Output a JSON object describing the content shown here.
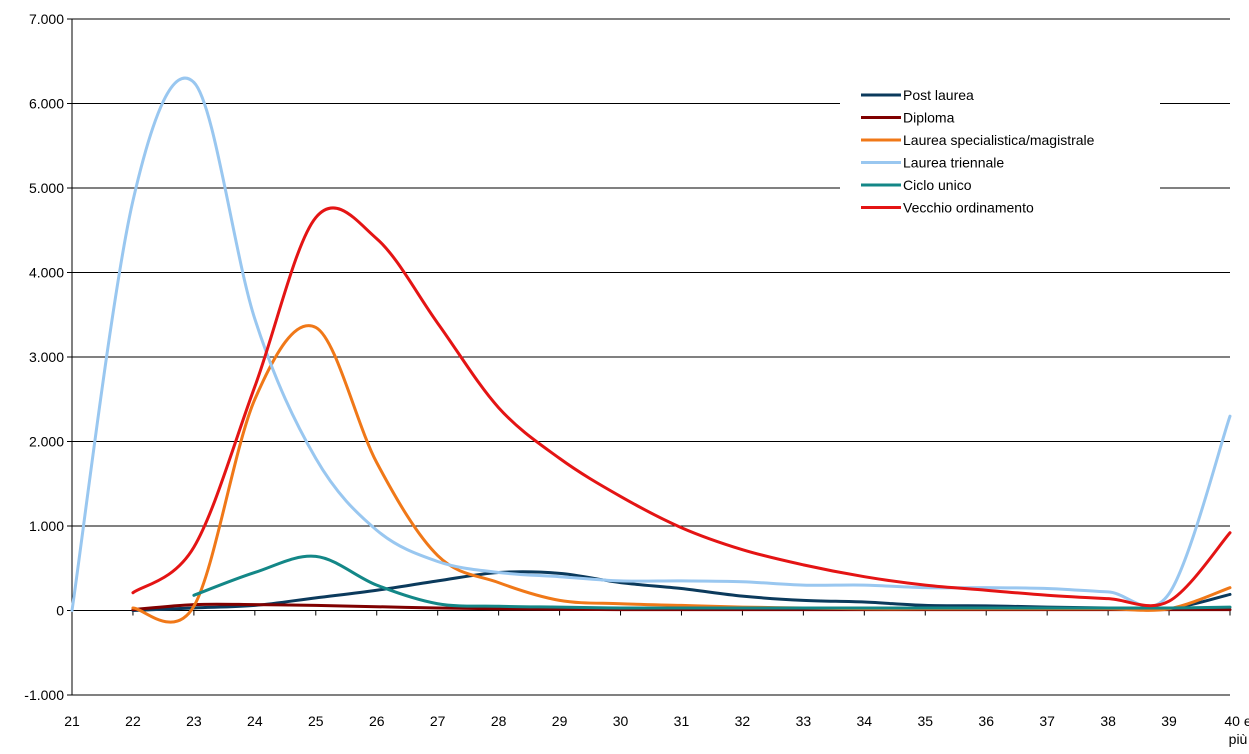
{
  "chart_data": {
    "type": "line",
    "title": "",
    "xlabel": "",
    "ylabel": "",
    "x": [
      "21",
      "22",
      "23",
      "24",
      "25",
      "26",
      "27",
      "28",
      "29",
      "30",
      "31",
      "32",
      "33",
      "34",
      "35",
      "36",
      "37",
      "38",
      "39",
      "40 e più"
    ],
    "x_tick_lines": [
      [
        "21"
      ],
      [
        "22"
      ],
      [
        "23"
      ],
      [
        "24"
      ],
      [
        "25"
      ],
      [
        "26"
      ],
      [
        "27"
      ],
      [
        "28"
      ],
      [
        "29"
      ],
      [
        "30"
      ],
      [
        "31"
      ],
      [
        "32"
      ],
      [
        "33"
      ],
      [
        "34"
      ],
      [
        "35"
      ],
      [
        "36"
      ],
      [
        "37"
      ],
      [
        "38"
      ],
      [
        "39"
      ],
      [
        "40 e",
        "più"
      ]
    ],
    "y_ticks": [
      -1000,
      0,
      1000,
      2000,
      3000,
      4000,
      5000,
      6000,
      7000
    ],
    "y_tick_labels": [
      "-1.000",
      "0",
      "1.000",
      "2.000",
      "3.000",
      "4.000",
      "5.000",
      "6.000",
      "7.000"
    ],
    "ylim": [
      -1000,
      7000
    ],
    "grid": "horizontal",
    "legend_position": "top-right",
    "series": [
      {
        "name": "Post laurea",
        "color": "#0b3a5c",
        "values": [
          null,
          0,
          30,
          60,
          150,
          240,
          350,
          450,
          440,
          330,
          260,
          170,
          120,
          100,
          60,
          55,
          40,
          30,
          20,
          190
        ]
      },
      {
        "name": "Diploma",
        "color": "#800000",
        "values": [
          null,
          10,
          70,
          70,
          60,
          45,
          30,
          20,
          15,
          10,
          10,
          10,
          10,
          10,
          10,
          10,
          10,
          10,
          10,
          10
        ]
      },
      {
        "name": "Laurea specialistica/magistrale",
        "color": "#f07818",
        "values": [
          null,
          30,
          50,
          2500,
          3350,
          1750,
          650,
          330,
          120,
          80,
          60,
          40,
          30,
          20,
          20,
          20,
          20,
          20,
          20,
          270
        ]
      },
      {
        "name": "Laurea triennale",
        "color": "#99c7f0",
        "values": [
          0,
          4850,
          6250,
          3450,
          1800,
          950,
          580,
          450,
          400,
          350,
          350,
          340,
          300,
          300,
          270,
          270,
          260,
          220,
          200,
          2300
        ]
      },
      {
        "name": "Ciclo unico",
        "color": "#138787",
        "values": [
          null,
          null,
          180,
          450,
          640,
          300,
          80,
          50,
          40,
          30,
          30,
          30,
          30,
          30,
          30,
          30,
          30,
          30,
          30,
          40
        ]
      },
      {
        "name": "Vecchio ordinamento",
        "color": "#e41414",
        "values": [
          null,
          210,
          750,
          2650,
          4650,
          4400,
          3400,
          2400,
          1800,
          1350,
          980,
          720,
          540,
          400,
          300,
          240,
          180,
          140,
          110,
          920
        ]
      }
    ]
  }
}
